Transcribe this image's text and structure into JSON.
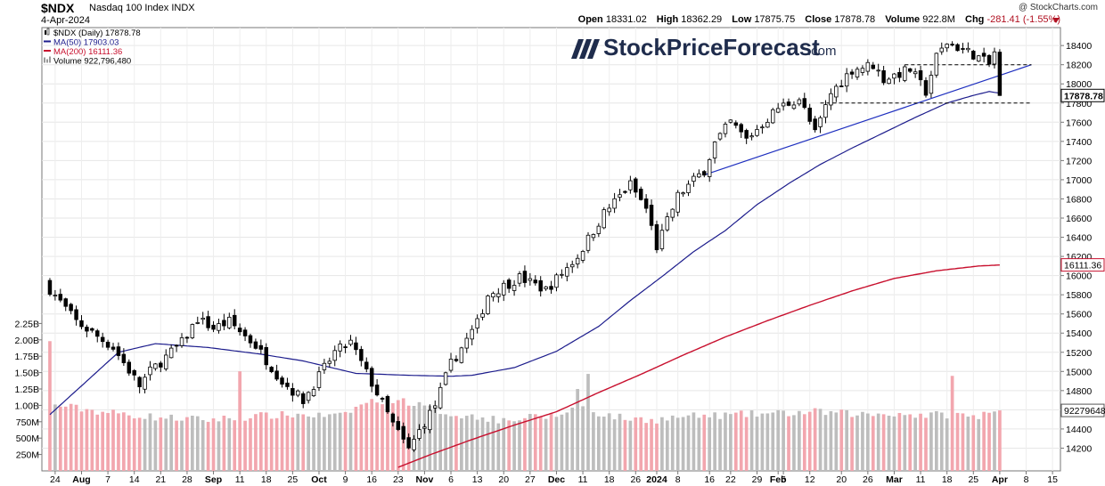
{
  "header": {
    "symbol": "$NDX",
    "name": "Nasdaq 100 Index",
    "exchange": "INDX",
    "date": "4-Apr-2024",
    "copyright": "@ StockCharts.com",
    "open_label": "Open",
    "open": "18331.02",
    "high_label": "High",
    "high": "18362.29",
    "low_label": "Low",
    "low": "17875.75",
    "close_label": "Close",
    "close": "17878.78",
    "volume_label": "Volume",
    "volume": "922.8M",
    "chg_label": "Chg",
    "chg": "-281.41 (-1.55%)"
  },
  "watermark": {
    "text": "StockPriceForecast",
    "suffix": ".com"
  },
  "legend": [
    {
      "label": "$NDX (Daily) 17878.78",
      "color": "#000000",
      "kind": "candle"
    },
    {
      "label": "MA(50) 17903.03",
      "color": "#1c1c8c",
      "kind": "line"
    },
    {
      "label": "MA(200) 16111.36",
      "color": "#c8102e",
      "kind": "line"
    },
    {
      "label": "Volume 922,796,480",
      "color": "#999999",
      "kind": "bar"
    }
  ],
  "colors": {
    "up": "#ffffff",
    "down": "#000000",
    "ma50": "#1c1c8c",
    "ma200": "#c8102e",
    "vol_up": "#bdbdbd",
    "vol_down": "#f2a6ae",
    "trend": "#1e2fbf"
  },
  "chart_data": {
    "type": "candlestick",
    "title": "$NDX Nasdaq 100 Index (Daily)",
    "price_axis": {
      "ylim": [
        14000,
        18550
      ],
      "ticks": [
        "18400",
        "18200",
        "18000",
        "17800",
        "17600",
        "17400",
        "17200",
        "17000",
        "16800",
        "16600",
        "16400",
        "16200",
        "16000",
        "15800",
        "15600",
        "15400",
        "15200",
        "15000",
        "14800",
        "14600",
        "14400",
        "14200"
      ]
    },
    "volume_axis": {
      "ylim": [
        0,
        2500000000
      ],
      "ticks": [
        "2.25B",
        "2.00B",
        "1.75B",
        "1.50B",
        "1.25B",
        "1.00B",
        "750M",
        "500M",
        "250M"
      ],
      "tick_values": [
        2250000000,
        2000000000,
        1750000000,
        1500000000,
        1250000000,
        1000000000,
        750000000,
        500000000,
        250000000
      ]
    },
    "x_ticks": [
      "24",
      "Aug",
      "7",
      "14",
      "21",
      "28",
      "Sep",
      "11",
      "18",
      "25",
      "Oct",
      "9",
      "16",
      "23",
      "Nov",
      "6",
      "13",
      "20",
      "27",
      "Dec",
      "11",
      "18",
      "26",
      "2024",
      "8",
      "16",
      "22",
      "29",
      "Feb",
      "5",
      "12",
      "20",
      "26",
      "Mar",
      "11",
      "18",
      "25",
      "Apr",
      "8",
      "15"
    ],
    "x_ticks_bold": [
      "Aug",
      "Sep",
      "Oct",
      "Nov",
      "Dec",
      "2024",
      "Feb",
      "Mar",
      "Apr"
    ],
    "x_tick_slots": [
      1,
      6,
      11,
      16,
      21,
      26,
      31,
      36,
      41,
      46,
      51,
      56,
      61,
      66,
      71,
      76,
      81,
      86,
      91,
      96,
      101,
      106,
      111,
      115,
      119,
      125,
      129,
      134,
      138,
      139,
      144,
      150,
      155,
      160,
      165,
      170,
      175,
      180,
      185,
      190
    ],
    "price_labels": [
      {
        "text": "17878.78",
        "value": 17878.78,
        "style": "close"
      },
      {
        "text": "16111.36",
        "value": 16111.36,
        "style": "ma200"
      },
      {
        "text": "922796480",
        "value": 922796480,
        "style": "volume"
      }
    ],
    "anchors": [
      [
        0,
        15860
      ],
      [
        5,
        15520
      ],
      [
        12,
        15250
      ],
      [
        17,
        14850
      ],
      [
        19,
        15000
      ],
      [
        25,
        15300
      ],
      [
        28,
        15550
      ],
      [
        31,
        15450
      ],
      [
        34,
        15520
      ],
      [
        39,
        15270
      ],
      [
        44,
        14900
      ],
      [
        48,
        14700
      ],
      [
        54,
        15200
      ],
      [
        57,
        15300
      ],
      [
        61,
        14880
      ],
      [
        65,
        14450
      ],
      [
        68,
        14180
      ],
      [
        70,
        14380
      ],
      [
        73,
        14650
      ],
      [
        76,
        15080
      ],
      [
        81,
        15500
      ],
      [
        83,
        15800
      ],
      [
        89,
        15980
      ],
      [
        94,
        15850
      ],
      [
        100,
        16200
      ],
      [
        105,
        16650
      ],
      [
        110,
        16950
      ],
      [
        113,
        16700
      ],
      [
        115,
        16300
      ],
      [
        119,
        16830
      ],
      [
        124,
        17100
      ],
      [
        126,
        17380
      ],
      [
        129,
        17600
      ],
      [
        132,
        17420
      ],
      [
        138,
        17750
      ],
      [
        142,
        17850
      ],
      [
        145,
        17480
      ],
      [
        148,
        17900
      ],
      [
        152,
        18150
      ],
      [
        156,
        18200
      ],
      [
        158,
        18050
      ],
      [
        163,
        18150
      ],
      [
        166,
        17920
      ],
      [
        168,
        18280
      ],
      [
        170,
        18430
      ],
      [
        175,
        18310
      ],
      [
        178,
        18200
      ],
      [
        179,
        18331
      ],
      [
        180,
        17879
      ]
    ],
    "vol_anchors": [
      [
        0,
        1020
      ],
      [
        10,
        900
      ],
      [
        20,
        820
      ],
      [
        30,
        780
      ],
      [
        40,
        840
      ],
      [
        47,
        860
      ],
      [
        55,
        830
      ],
      [
        60,
        1050
      ],
      [
        66,
        1100
      ],
      [
        70,
        1000
      ],
      [
        76,
        870
      ],
      [
        86,
        770
      ],
      [
        93,
        830
      ],
      [
        96,
        830
      ],
      [
        100,
        1000
      ],
      [
        104,
        880
      ],
      [
        109,
        800
      ],
      [
        115,
        780
      ],
      [
        120,
        830
      ],
      [
        125,
        840
      ],
      [
        131,
        860
      ],
      [
        135,
        870
      ],
      [
        140,
        880
      ],
      [
        145,
        900
      ],
      [
        150,
        880
      ],
      [
        155,
        860
      ],
      [
        160,
        880
      ],
      [
        165,
        850
      ],
      [
        170,
        860
      ],
      [
        175,
        840
      ],
      [
        180,
        923
      ]
    ],
    "vol_spikes": [
      [
        0,
        1980
      ],
      [
        36,
        1520
      ],
      [
        84,
        840
      ],
      [
        100,
        1250
      ],
      [
        102,
        1480
      ],
      [
        171,
        1450
      ],
      [
        176,
        790
      ]
    ],
    "ma50_anchors": [
      [
        0,
        14550
      ],
      [
        8,
        14950
      ],
      [
        13,
        15200
      ],
      [
        20,
        15290
      ],
      [
        30,
        15250
      ],
      [
        40,
        15180
      ],
      [
        48,
        15110
      ],
      [
        58,
        14980
      ],
      [
        68,
        14960
      ],
      [
        76,
        14950
      ],
      [
        80,
        14960
      ],
      [
        88,
        15040
      ],
      [
        96,
        15210
      ],
      [
        104,
        15470
      ],
      [
        110,
        15740
      ],
      [
        116,
        15990
      ],
      [
        122,
        16250
      ],
      [
        128,
        16470
      ],
      [
        134,
        16740
      ],
      [
        140,
        16960
      ],
      [
        146,
        17160
      ],
      [
        152,
        17330
      ],
      [
        158,
        17490
      ],
      [
        164,
        17650
      ],
      [
        170,
        17800
      ],
      [
        175,
        17880
      ],
      [
        178,
        17920
      ],
      [
        180,
        17903
      ]
    ],
    "ma200_anchors": [
      [
        66,
        14000
      ],
      [
        72,
        14130
      ],
      [
        80,
        14290
      ],
      [
        88,
        14440
      ],
      [
        96,
        14580
      ],
      [
        104,
        14780
      ],
      [
        112,
        14970
      ],
      [
        120,
        15170
      ],
      [
        128,
        15360
      ],
      [
        136,
        15530
      ],
      [
        144,
        15690
      ],
      [
        152,
        15840
      ],
      [
        160,
        15970
      ],
      [
        168,
        16050
      ],
      [
        176,
        16100
      ],
      [
        180,
        16111
      ]
    ],
    "trend_support": [
      [
        124,
        17050
      ],
      [
        186,
        18200
      ]
    ],
    "level_lines": [
      [
        162,
        186,
        18200
      ],
      [
        146,
        186,
        17800
      ]
    ]
  }
}
